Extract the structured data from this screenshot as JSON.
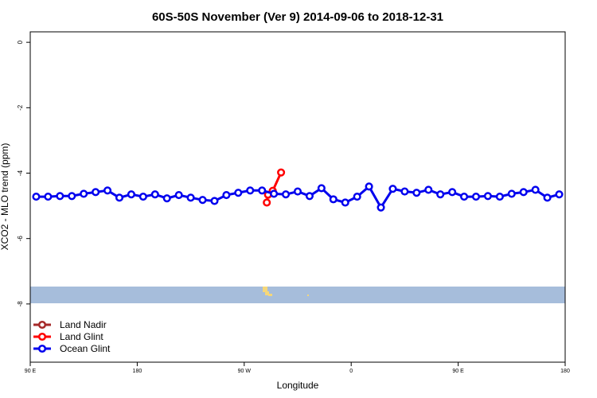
{
  "chart_data": {
    "type": "line",
    "title": "60S-50S November (Ver 9)   2014-09-06 to 2018-12-31",
    "x_label": "Longitude",
    "y_label": "XCO2 - MLO trend (ppm)",
    "xlim": [
      90,
      540
    ],
    "xticks": [
      {
        "value": 90,
        "label": "90 E"
      },
      {
        "value": 180,
        "label": "180"
      },
      {
        "value": 270,
        "label": "90 W"
      },
      {
        "value": 360,
        "label": "0"
      },
      {
        "value": 450,
        "label": "90 E"
      },
      {
        "value": 540,
        "label": "180"
      }
    ],
    "ylim": [
      -9.78,
      0.32
    ],
    "yticks": [
      0,
      -2,
      -4,
      -6,
      -8
    ],
    "legend": "bottom-left",
    "series": [
      {
        "name": "Land Nadir",
        "color": "#a52a2a",
        "x": [],
        "values": []
      },
      {
        "name": "Land Glint",
        "color": "#ff0000",
        "x": [
          289,
          290,
          294,
          301
        ],
        "values": [
          -4.9,
          -4.66,
          -4.54,
          -3.98
        ]
      },
      {
        "name": "Ocean Glint",
        "color": "#0000ee",
        "x": [
          95,
          105,
          115,
          125,
          135,
          145,
          155,
          165,
          175,
          185,
          195,
          205,
          215,
          225,
          235,
          245,
          255,
          265,
          275,
          285,
          295,
          305,
          315,
          325,
          335,
          345,
          355,
          365,
          375,
          385,
          395,
          405,
          415,
          425,
          435,
          445,
          455,
          465,
          475,
          485,
          495,
          505,
          515,
          525,
          535
        ],
        "values": [
          -4.72,
          -4.72,
          -4.7,
          -4.7,
          -4.63,
          -4.58,
          -4.53,
          -4.75,
          -4.65,
          -4.72,
          -4.65,
          -4.77,
          -4.67,
          -4.75,
          -4.82,
          -4.85,
          -4.67,
          -4.6,
          -4.53,
          -4.53,
          -4.63,
          -4.65,
          -4.56,
          -4.7,
          -4.46,
          -4.8,
          -4.9,
          -4.72,
          -4.41,
          -5.05,
          -4.48,
          -4.56,
          -4.6,
          -4.51,
          -4.65,
          -4.58,
          -4.72,
          -4.72,
          -4.7,
          -4.72,
          -4.63,
          -4.58,
          -4.51,
          -4.75,
          -4.65
        ]
      }
    ]
  }
}
